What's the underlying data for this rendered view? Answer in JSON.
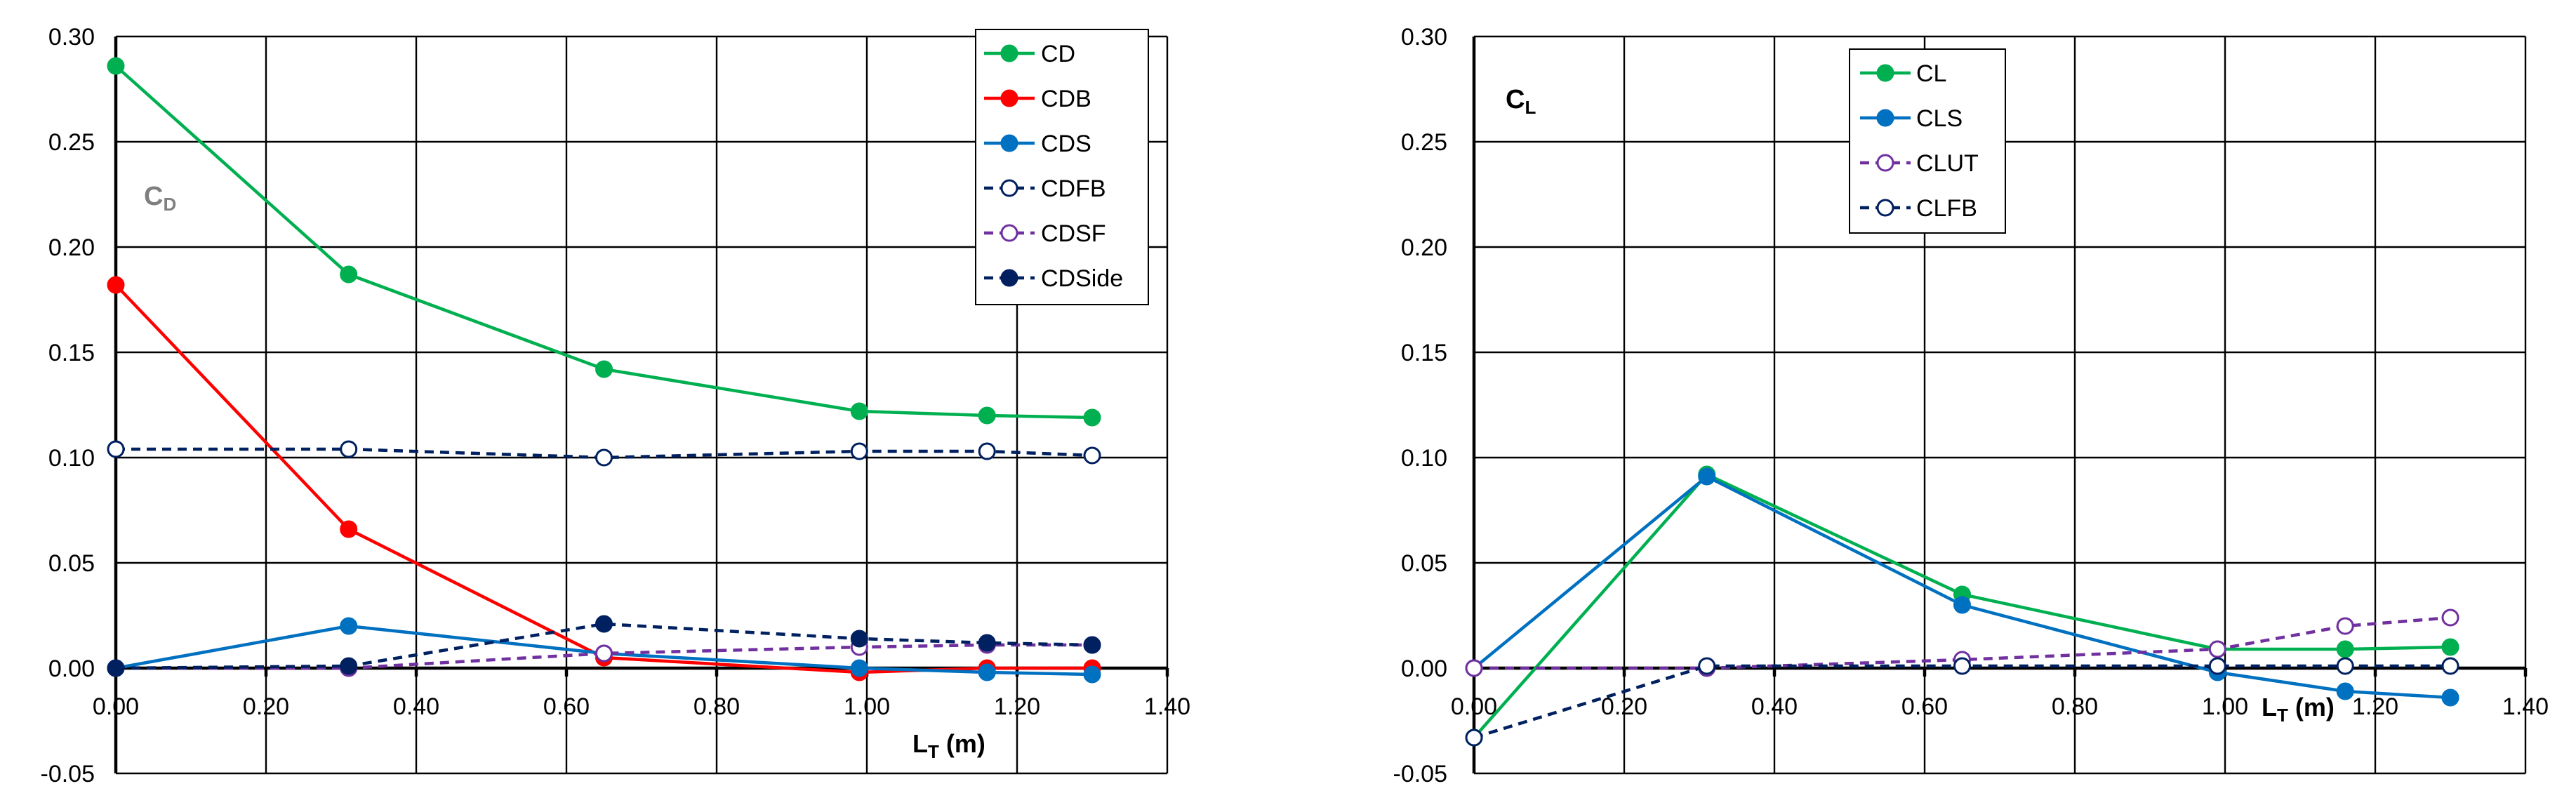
{
  "chart_data": [
    {
      "type": "line",
      "title": "",
      "panel_label": "C",
      "panel_label_sub": "D",
      "xlabel_main": "L",
      "xlabel_sub": "T",
      "xlabel_tail": " (m)",
      "xlim": [
        0,
        1.4
      ],
      "ylim": [
        -0.05,
        0.3
      ],
      "xticks": [
        "0.00",
        "0.20",
        "0.40",
        "0.60",
        "0.80",
        "1.00",
        "1.20",
        "1.40"
      ],
      "yticks": [
        "0.30",
        "0.25",
        "0.20",
        "0.15",
        "0.10",
        "0.05",
        "0.00",
        "-0.05"
      ],
      "grid": true,
      "legend_position": "top-right",
      "series": [
        {
          "name": "CD",
          "color": "#00b050",
          "dashed": false,
          "marker": "filled",
          "x": [
            0,
            0.31,
            0.65,
            0.99,
            1.16,
            1.3
          ],
          "y": [
            0.286,
            0.187,
            0.142,
            0.122,
            0.12,
            0.119
          ]
        },
        {
          "name": "CDB",
          "color": "#ff0000",
          "dashed": false,
          "marker": "filled",
          "x": [
            0,
            0.31,
            0.65,
            0.99,
            1.16,
            1.3
          ],
          "y": [
            0.182,
            0.066,
            0.005,
            -0.002,
            0.0,
            0.0
          ]
        },
        {
          "name": "CDS",
          "color": "#0070c0",
          "dashed": false,
          "marker": "filled",
          "x": [
            0,
            0.31,
            0.65,
            0.99,
            1.16,
            1.3
          ],
          "y": [
            0.0,
            0.02,
            0.007,
            0.0,
            -0.002,
            -0.003
          ]
        },
        {
          "name": "CDFB",
          "color": "#002060",
          "dashed": true,
          "marker": "open",
          "x": [
            0,
            0.31,
            0.65,
            0.99,
            1.16,
            1.3
          ],
          "y": [
            0.104,
            0.104,
            0.1,
            0.103,
            0.103,
            0.101
          ]
        },
        {
          "name": "CDSF",
          "color": "#7030a0",
          "dashed": true,
          "marker": "open",
          "x": [
            0,
            0.31,
            0.65,
            0.99,
            1.16,
            1.3
          ],
          "y": [
            0.0,
            0.0,
            0.007,
            0.01,
            0.011,
            0.011
          ]
        },
        {
          "name": "CDSide",
          "color": "#002060",
          "dashed": true,
          "marker": "filled",
          "x": [
            0,
            0.31,
            0.65,
            0.99,
            1.16,
            1.3
          ],
          "y": [
            0.0,
            0.001,
            0.021,
            0.014,
            0.012,
            0.011
          ]
        }
      ]
    },
    {
      "type": "line",
      "title": "",
      "panel_label": "C",
      "panel_label_sub": "L",
      "xlabel_main": "L",
      "xlabel_sub": "T",
      "xlabel_tail": " (m)",
      "xlim": [
        0,
        1.4
      ],
      "ylim": [
        -0.05,
        0.3
      ],
      "xticks": [
        "0.00",
        "0.20",
        "0.40",
        "0.60",
        "0.80",
        "1.00",
        "1.20",
        "1.40"
      ],
      "yticks": [
        "0.30",
        "0.25",
        "0.20",
        "0.15",
        "0.10",
        "0.05",
        "0.00",
        "-0.05"
      ],
      "grid": true,
      "legend_position": "top-center",
      "series": [
        {
          "name": "CL",
          "color": "#00b050",
          "dashed": false,
          "marker": "filled",
          "x": [
            0,
            0.31,
            0.65,
            0.99,
            1.16,
            1.3
          ],
          "y": [
            -0.033,
            0.092,
            0.035,
            0.009,
            0.009,
            0.01
          ]
        },
        {
          "name": "CLS",
          "color": "#0070c0",
          "dashed": false,
          "marker": "filled",
          "x": [
            0,
            0.31,
            0.65,
            0.99,
            1.16,
            1.3
          ],
          "y": [
            0.0,
            0.091,
            0.03,
            -0.002,
            -0.011,
            -0.014
          ]
        },
        {
          "name": "CLUT",
          "color": "#7030a0",
          "dashed": true,
          "marker": "open",
          "x": [
            0,
            0.31,
            0.65,
            0.99,
            1.16,
            1.3
          ],
          "y": [
            0.0,
            0.0,
            0.004,
            0.009,
            0.02,
            0.024
          ]
        },
        {
          "name": "CLFB",
          "color": "#002060",
          "dashed": true,
          "marker": "open",
          "x": [
            0,
            0.31,
            0.65,
            0.99,
            1.16,
            1.3
          ],
          "y": [
            -0.033,
            0.001,
            0.001,
            0.001,
            0.001,
            0.001
          ]
        }
      ]
    }
  ]
}
